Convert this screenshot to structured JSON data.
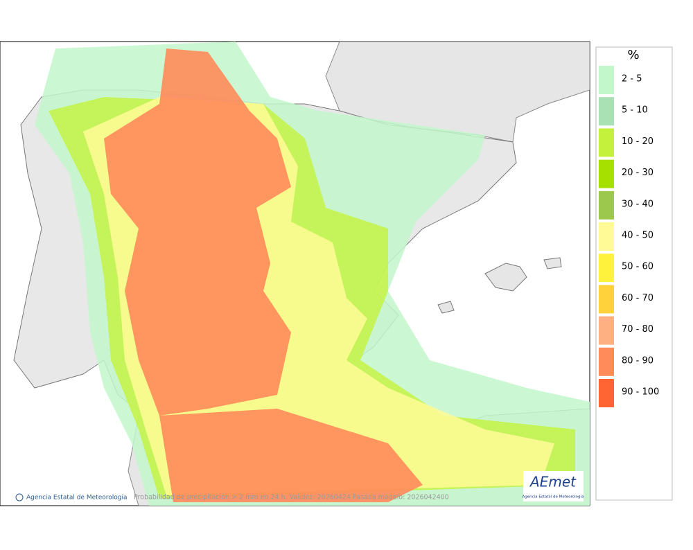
{
  "map": {
    "caption": "Probabilidad de precipitación > 2 mm en 24 h. Validez: 20260424 Pasada modelo: 2026042400",
    "credit": "Agencia Estatal de Meteorología"
  },
  "logo": {
    "name": "AEmet",
    "subtitle": "Agencia Estatal de Meteorología"
  },
  "legend": {
    "title": "%",
    "items": [
      {
        "label": "2 - 5",
        "color": "#c2f7cb"
      },
      {
        "label": "5 - 10",
        "color": "#a9e0b4"
      },
      {
        "label": "10 - 20",
        "color": "#c4f23c"
      },
      {
        "label": "20 - 30",
        "color": "#a6e000"
      },
      {
        "label": "30 - 40",
        "color": "#9cc84e"
      },
      {
        "label": "40 - 50",
        "color": "#fffa96"
      },
      {
        "label": "50 - 60",
        "color": "#fff23c"
      },
      {
        "label": "60 - 70",
        "color": "#ffd23c"
      },
      {
        "label": "70 - 80",
        "color": "#ffb082"
      },
      {
        "label": "80 - 90",
        "color": "#ff8a5a"
      },
      {
        "label": "90 - 100",
        "color": "#ff6432"
      }
    ]
  }
}
